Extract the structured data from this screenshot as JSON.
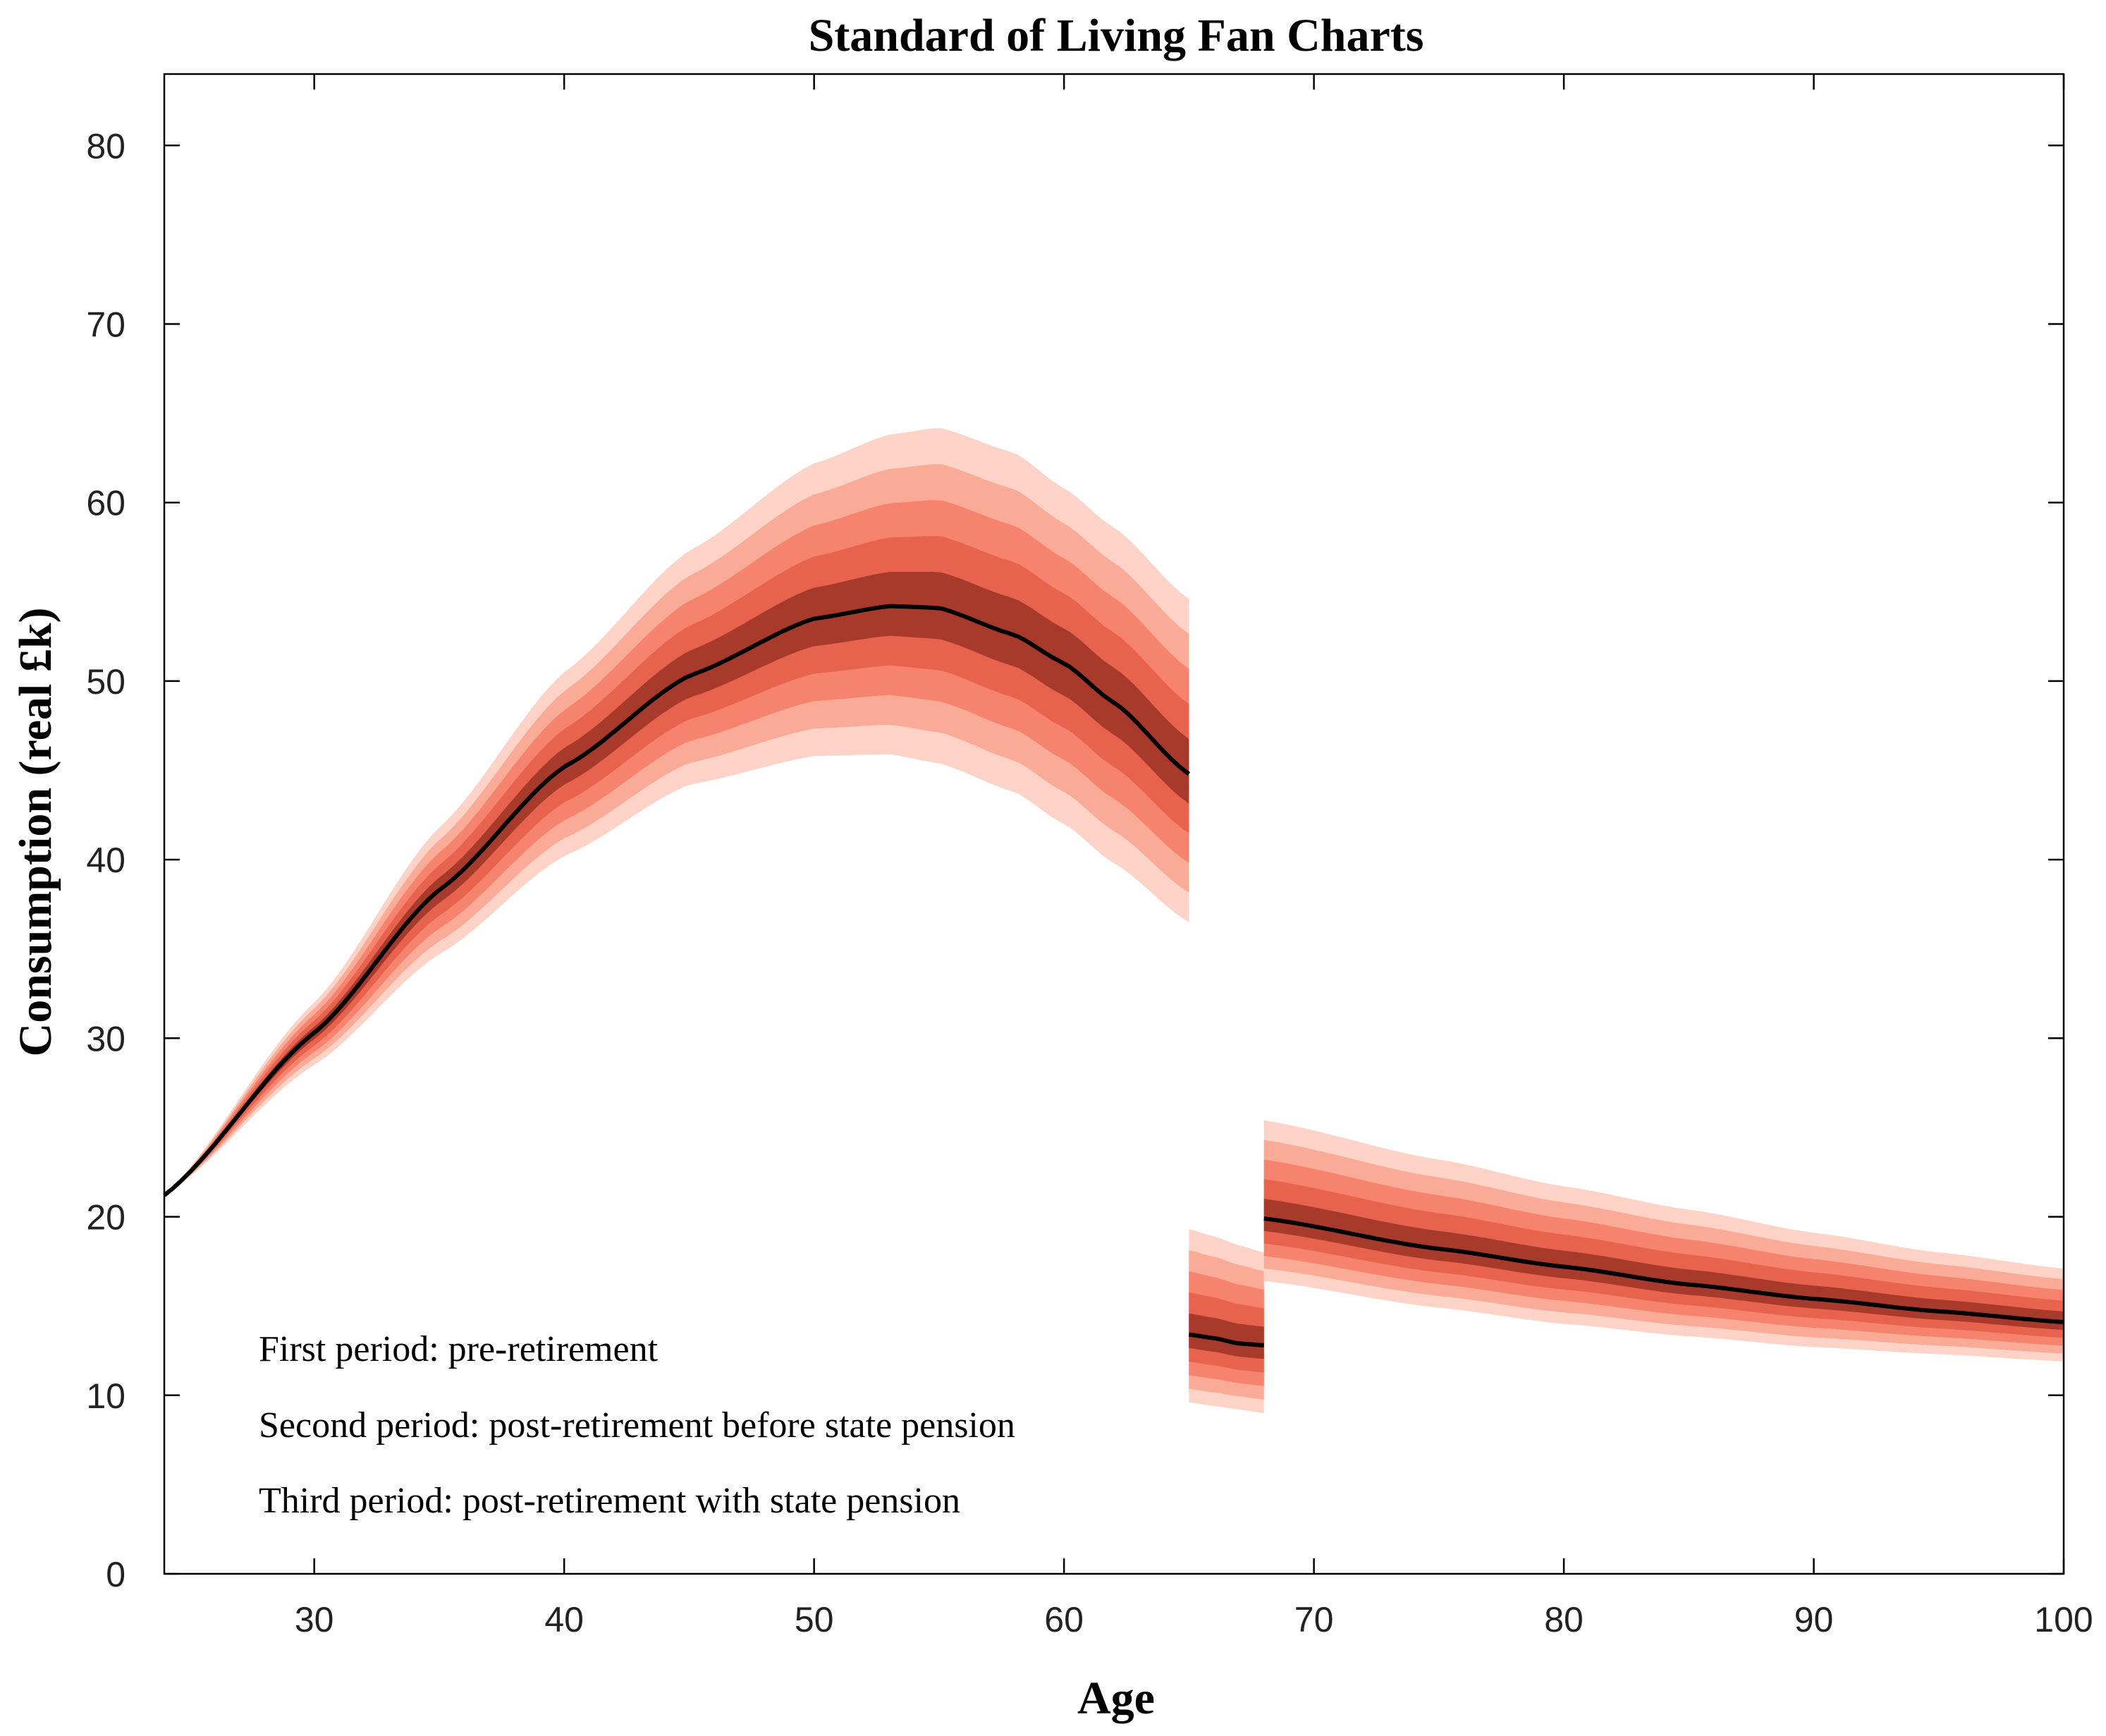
{
  "chart_data": {
    "type": "area",
    "title": "Standard of Living Fan Charts",
    "xlabel": "Age",
    "ylabel": "Consumption (real £k)",
    "xlim": [
      24,
      100
    ],
    "ylim": [
      0,
      84
    ],
    "xticks": [
      30,
      40,
      50,
      60,
      70,
      80,
      90,
      100
    ],
    "yticks": [
      0,
      10,
      20,
      30,
      40,
      50,
      60,
      70,
      80
    ],
    "grid": false,
    "fan_colors": [
      "#fcd3c6",
      "#f9ab98",
      "#f5836d",
      "#e8634e",
      "#a83a2c"
    ],
    "median_color": "#000000",
    "segments": [
      {
        "name": "First period: pre-retirement",
        "x": [
          24,
          30,
          35,
          40,
          45,
          50,
          53,
          55,
          58,
          60,
          62,
          65
        ],
        "median": [
          21.2,
          30.3,
          38.3,
          45.2,
          50.3,
          53.5,
          54.2,
          54.1,
          52.6,
          51.0,
          48.8,
          44.8
        ],
        "upper": [
          21.2,
          32.0,
          41.8,
          50.5,
          57.3,
          62.2,
          63.8,
          64.2,
          62.8,
          60.8,
          58.6,
          54.6
        ],
        "lower": [
          21.2,
          28.5,
          34.7,
          40.2,
          44.2,
          45.8,
          45.9,
          45.4,
          43.8,
          42.0,
          39.8,
          36.5
        ]
      },
      {
        "name": "Second period: post-retirement before state pension",
        "x": [
          65,
          66,
          67,
          68
        ],
        "median": [
          13.4,
          13.2,
          12.9,
          12.8
        ],
        "upper": [
          19.3,
          18.9,
          18.4,
          18.0
        ],
        "lower": [
          9.6,
          9.4,
          9.2,
          9.0
        ]
      },
      {
        "name": "Third period: post-retirement with state pension",
        "x": [
          68,
          75,
          80,
          85,
          90,
          95,
          100
        ],
        "median": [
          19.9,
          18.2,
          17.2,
          16.2,
          15.4,
          14.7,
          14.1
        ],
        "upper": [
          25.4,
          23.2,
          21.7,
          20.4,
          19.1,
          18.0,
          17.1
        ],
        "lower": [
          16.4,
          14.9,
          14.0,
          13.3,
          12.7,
          12.3,
          11.9
        ]
      }
    ],
    "annotations": [
      "First period: pre-retirement",
      "Second period: post-retirement before state pension",
      "Third period: post-retirement with state pension"
    ]
  }
}
